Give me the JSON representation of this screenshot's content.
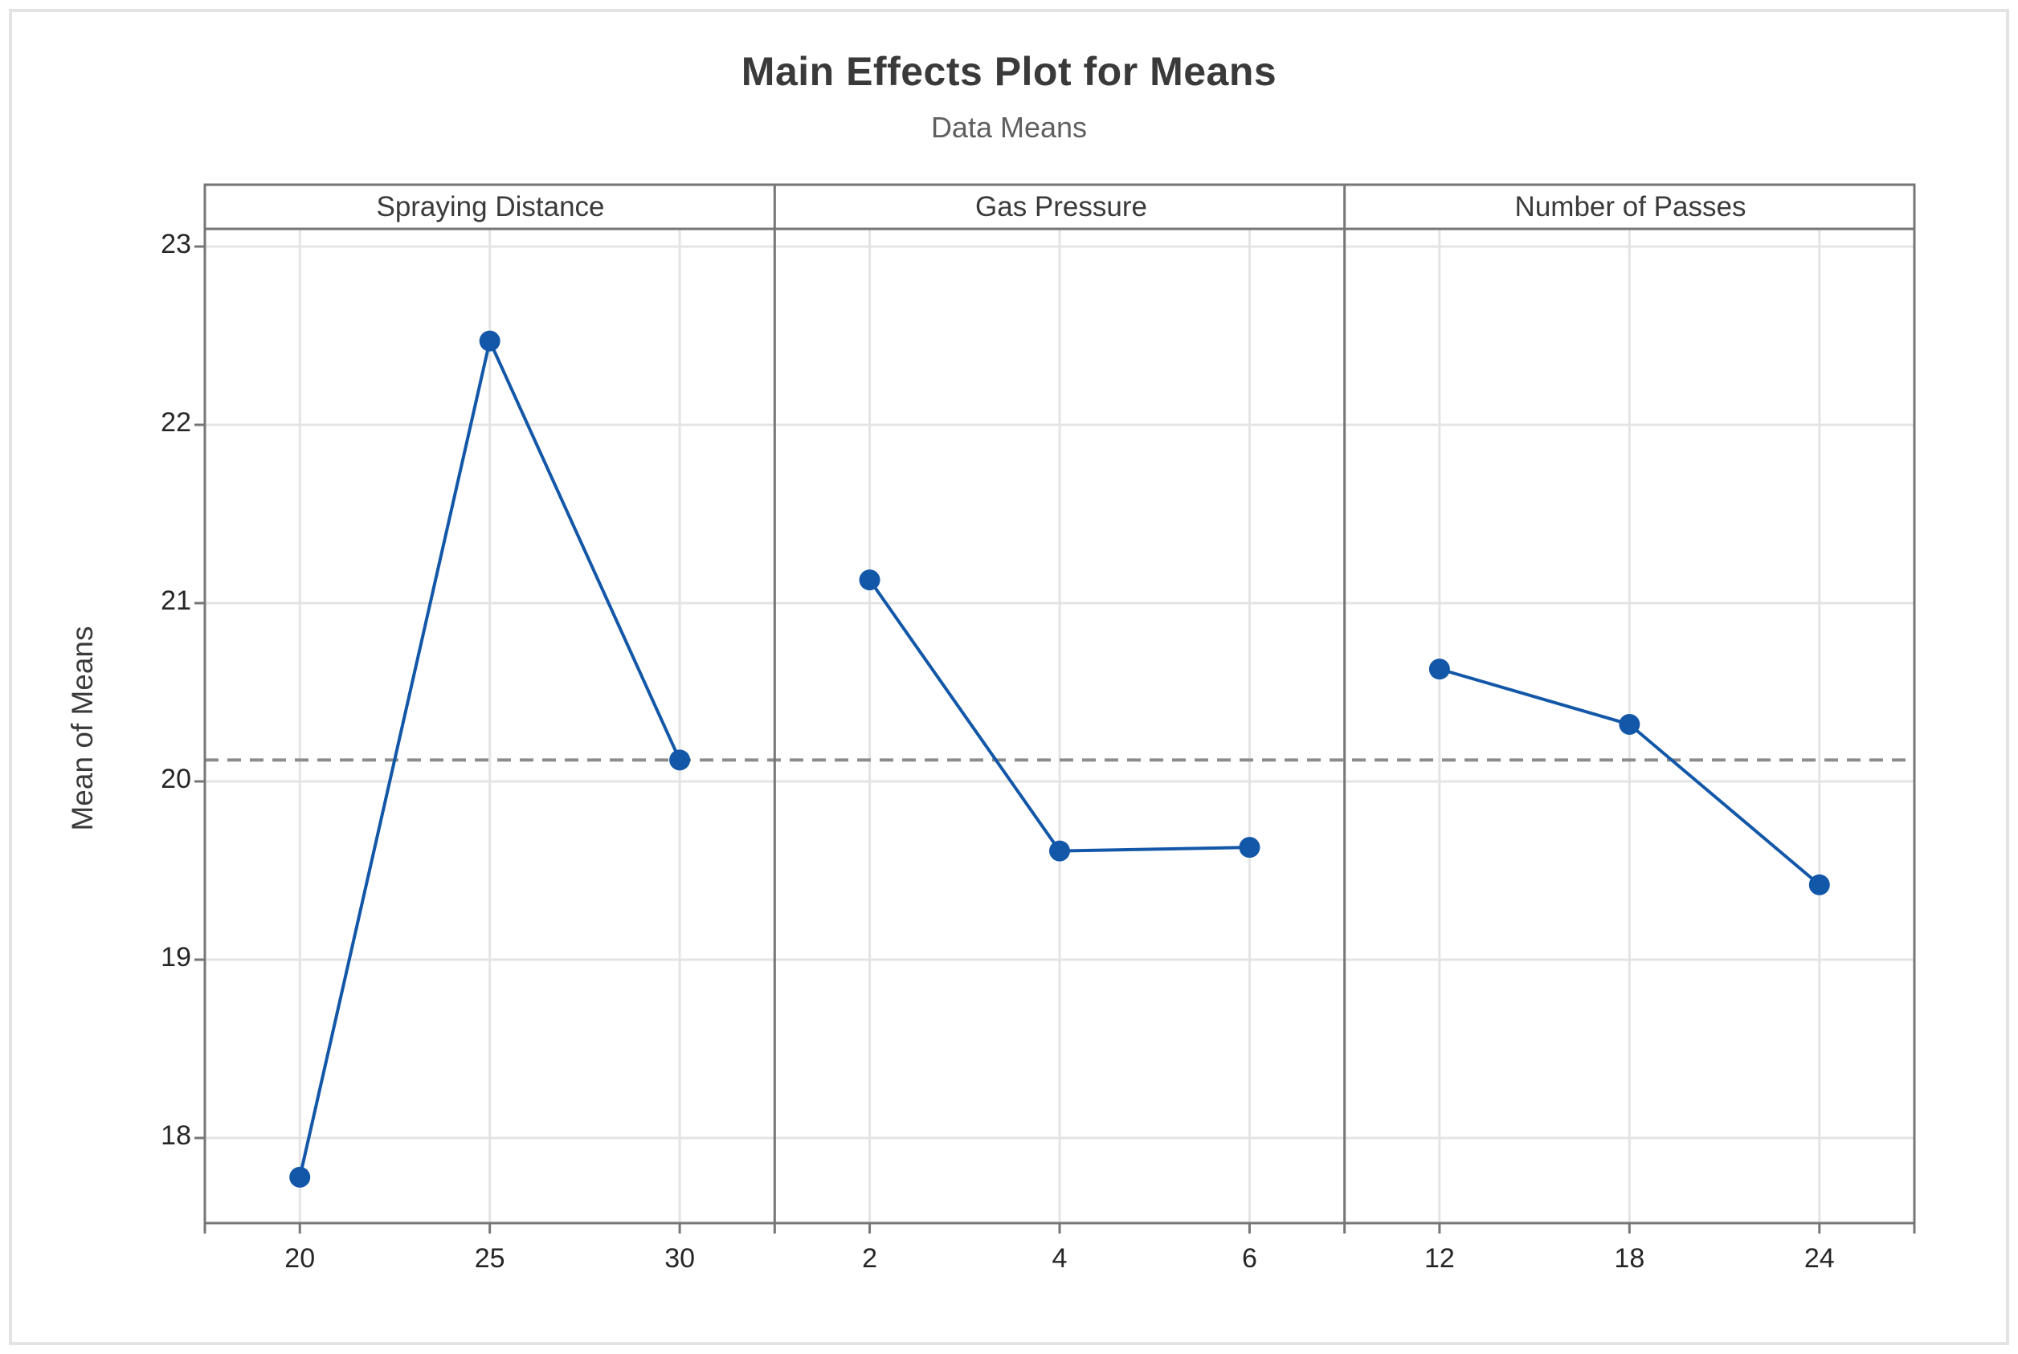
{
  "title": "Main Effects Plot for Means",
  "subtitle": "Data Means",
  "colors": {
    "series": "#1357a8",
    "axis": "#767676",
    "grid": "#e4e4e4",
    "grand_mean_line": "#8c8c8c",
    "title_text": "#3a3a3a",
    "tick_text": "#262626",
    "outer_border": "#e3e3e3"
  },
  "chart_data": {
    "type": "line",
    "title": "Main Effects Plot for Means",
    "subtitle": "Data Means",
    "ylabel": "Mean of Means",
    "xlabel": "",
    "ylim": [
      17.5,
      23.1
    ],
    "yticks": [
      23,
      22,
      21,
      20,
      19,
      18
    ],
    "grid": true,
    "legend": "none",
    "grand_mean": 20.12,
    "grand_mean_style": "dashed",
    "panels": [
      {
        "label": "Spraying Distance",
        "categories": [
          "20",
          "25",
          "30"
        ],
        "values": [
          17.78,
          22.47,
          20.12
        ]
      },
      {
        "label": "Gas Pressure",
        "categories": [
          "2",
          "4",
          "6"
        ],
        "values": [
          21.13,
          19.61,
          19.63
        ]
      },
      {
        "label": "Number of Passes",
        "categories": [
          "12",
          "18",
          "24"
        ],
        "values": [
          20.63,
          20.32,
          19.42
        ]
      }
    ]
  }
}
